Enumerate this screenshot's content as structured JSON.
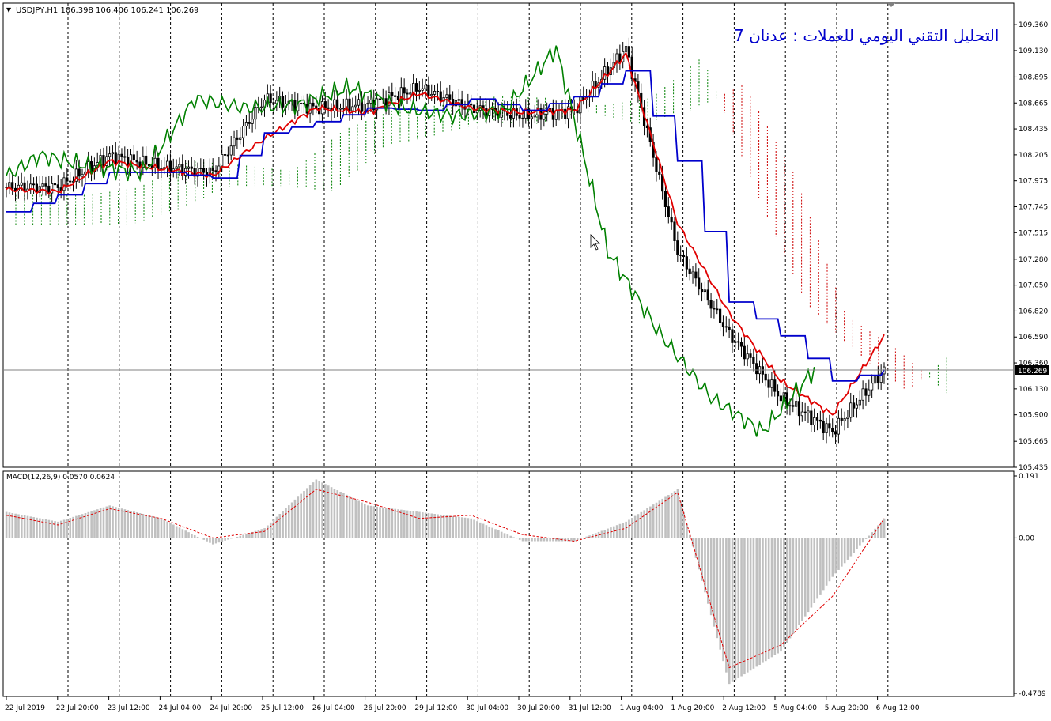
{
  "header": {
    "symbol_info": "USDJPY,H1  106.398 106.406 106.241 106.269",
    "collapse_glyph": "▼",
    "watermark_title": "التحليل التقني اليومي للعملات : عدنان 7"
  },
  "colors": {
    "candle": "#000000",
    "tenkan": "#e00000",
    "kijun": "#0000cc",
    "chikou": "#008000",
    "kumo_bull": "#008000",
    "kumo_bear": "#cc0000",
    "macd_hist": "#c0c0c0",
    "macd_signal": "#e00000",
    "grid": "#000000",
    "price_line": "#808080",
    "title": "#0000cc"
  },
  "price_axis": {
    "ticks": [
      "109.360",
      "109.130",
      "108.895",
      "108.665",
      "108.435",
      "108.205",
      "107.975",
      "107.745",
      "107.515",
      "107.280",
      "107.050",
      "106.820",
      "106.590",
      "106.360",
      "106.130",
      "105.900",
      "105.665",
      "105.435"
    ],
    "current_price": "106.269"
  },
  "macd_panel": {
    "label": "MACD(12,26,9) 0.0570 0.0624",
    "ticks": [
      "0.191",
      "0.00",
      "-0.4789"
    ]
  },
  "time_axis": {
    "labels": [
      "22 Jul 2019",
      "22 Jul 20:00",
      "23 Jul 12:00",
      "24 Jul 04:00",
      "24 Jul 20:00",
      "25 Jul 12:00",
      "26 Jul 04:00",
      "26 Jul 20:00",
      "29 Jul 12:00",
      "30 Jul 04:00",
      "30 Jul 20:00",
      "31 Jul 12:00",
      "1 Aug 04:00",
      "1 Aug 20:00",
      "2 Aug 12:00",
      "5 Aug 04:00",
      "5 Aug 20:00",
      "6 Aug 12:00"
    ]
  },
  "chart_data": {
    "type": "line",
    "instrument": "USDJPY",
    "timeframe": "H1",
    "ylim": [
      105.435,
      109.48
    ],
    "x": [
      "22 Jul 2019",
      "22 Jul 20:00",
      "23 Jul 12:00",
      "24 Jul 04:00",
      "24 Jul 20:00",
      "25 Jul 12:00",
      "26 Jul 04:00",
      "26 Jul 20:00",
      "29 Jul 12:00",
      "30 Jul 04:00",
      "30 Jul 20:00",
      "31 Jul 12:00",
      "1 Aug 04:00",
      "1 Aug 20:00",
      "2 Aug 12:00",
      "5 Aug 04:00",
      "5 Aug 20:00",
      "6 Aug 12:00"
    ],
    "series": [
      {
        "values": [
          107.92,
          107.92,
          108.2,
          108.1,
          108.05,
          108.7,
          108.62,
          108.65,
          108.8,
          108.62,
          108.55,
          108.6,
          109.15,
          107.35,
          106.62,
          106.05,
          105.75,
          106.3
        ]
      },
      {
        "values": [
          107.9,
          107.88,
          108.15,
          108.08,
          108.02,
          108.35,
          108.62,
          108.58,
          108.75,
          108.62,
          108.58,
          108.6,
          109.1,
          107.6,
          106.8,
          106.2,
          105.9,
          106.6
        ]
      },
      {
        "values": [
          107.7,
          107.85,
          108.05,
          108.05,
          108.0,
          108.4,
          108.5,
          108.62,
          108.6,
          108.7,
          108.6,
          108.72,
          108.95,
          108.15,
          106.9,
          106.6,
          106.2,
          106.3
        ]
      }
    ],
    "macd": {
      "ylim": [
        -0.4789,
        0.191
      ],
      "histogram": [
        0.08,
        0.05,
        0.1,
        0.06,
        -0.02,
        0.03,
        0.18,
        0.1,
        0.08,
        0.06,
        -0.01,
        -0.01,
        0.05,
        0.15,
        -0.45,
        -0.35,
        -0.12,
        0.06
      ],
      "signal": [
        0.07,
        0.04,
        0.09,
        0.06,
        0.0,
        0.02,
        0.15,
        0.11,
        0.06,
        0.07,
        0.01,
        -0.01,
        0.03,
        0.14,
        -0.4,
        -0.33,
        -0.18,
        0.06
      ]
    }
  }
}
